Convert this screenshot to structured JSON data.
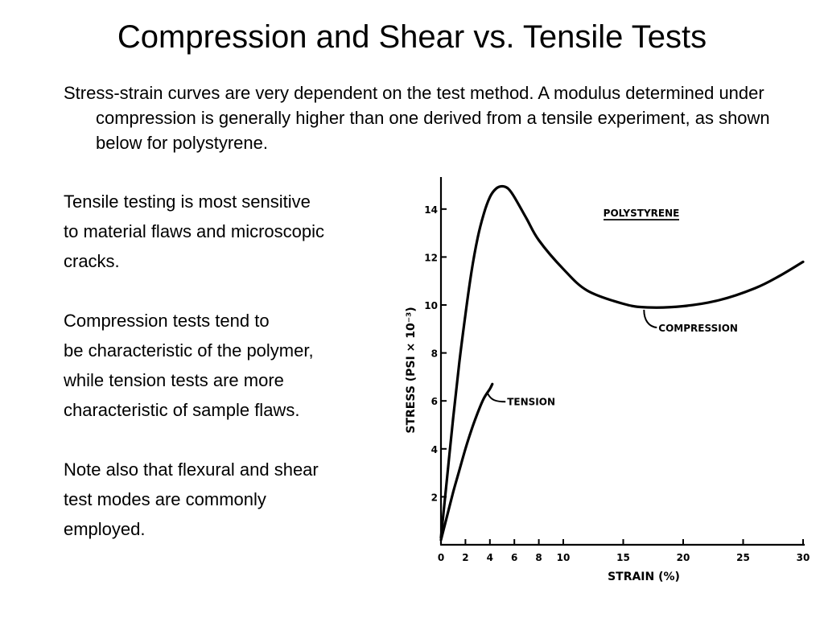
{
  "slide": {
    "title": "Compression and Shear vs. Tensile Tests",
    "intro": "Stress-strain curves are very dependent on the test method.  A modulus determined under compression is generally higher than one derived from a tensile experiment, as shown below for polystyrene.",
    "paragraphs": [
      [
        "Tensile testing is most sensitive",
        "to material flaws and microscopic",
        "cracks."
      ],
      [
        "Compression tests tend to",
        "be characteristic of the polymer,",
        "while tension tests are more",
        "characteristic of sample flaws."
      ],
      [
        "Note also that flexural and shear",
        "test modes are commonly",
        "employed."
      ]
    ]
  },
  "colors": {
    "background": "#ffffff",
    "ink": "#000000"
  },
  "chart_data": {
    "type": "line",
    "title": "POLYSTYRENE",
    "xlabel": "STRAIN (%)",
    "ylabel": "STRESS (PSI × 10⁻³)",
    "xlim": [
      0,
      30
    ],
    "ylim": [
      0,
      15
    ],
    "x_ticks": [
      0,
      2,
      4,
      6,
      8,
      10,
      15,
      20,
      25,
      30
    ],
    "y_ticks": [
      2,
      4,
      6,
      8,
      10,
      12,
      14
    ],
    "grid": false,
    "series": [
      {
        "name": "COMPRESSION",
        "points": [
          [
            0,
            0.3
          ],
          [
            0.5,
            2.8
          ],
          [
            1,
            5.3
          ],
          [
            1.5,
            7.6
          ],
          [
            2,
            9.6
          ],
          [
            2.5,
            11.4
          ],
          [
            3,
            12.8
          ],
          [
            3.5,
            13.8
          ],
          [
            4,
            14.5
          ],
          [
            4.5,
            14.85
          ],
          [
            5,
            14.95
          ],
          [
            5.5,
            14.85
          ],
          [
            6,
            14.5
          ],
          [
            7,
            13.6
          ],
          [
            8,
            12.7
          ],
          [
            10,
            11.5
          ],
          [
            12,
            10.6
          ],
          [
            15,
            10.05
          ],
          [
            17,
            9.9
          ],
          [
            20,
            9.95
          ],
          [
            23,
            10.2
          ],
          [
            26,
            10.7
          ],
          [
            28,
            11.2
          ],
          [
            30,
            11.8
          ]
        ]
      },
      {
        "name": "TENSION",
        "points": [
          [
            0,
            0.2
          ],
          [
            0.5,
            1.2
          ],
          [
            1,
            2.2
          ],
          [
            1.5,
            3.1
          ],
          [
            2,
            4.0
          ],
          [
            2.5,
            4.8
          ],
          [
            3,
            5.5
          ],
          [
            3.5,
            6.1
          ],
          [
            4,
            6.5
          ],
          [
            4.2,
            6.7
          ],
          [
            4.1,
            6.6
          ]
        ]
      }
    ]
  }
}
